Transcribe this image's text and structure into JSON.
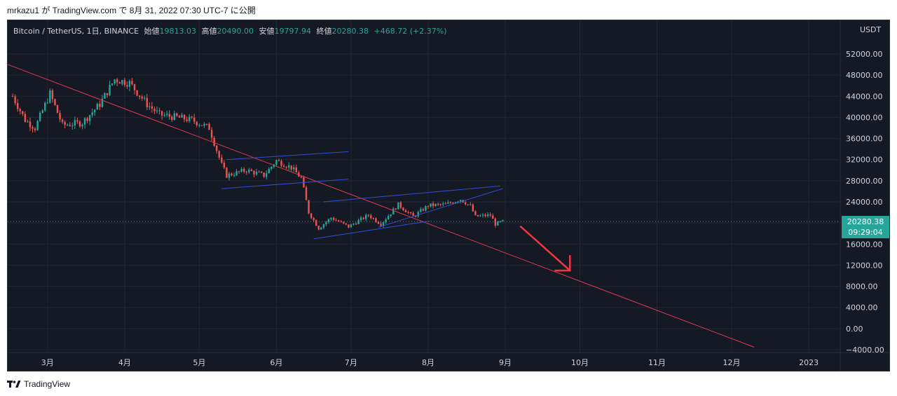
{
  "header": {
    "published_by": "mrkazu1 が TradingView.com で 8月 31, 2022 07:30 UTC-7 に公開"
  },
  "legend": {
    "symbol": "Bitcoin / TetherUS, 1日, BINANCE",
    "open_label": "始値",
    "open_value": "19813.03",
    "high_label": "高値",
    "high_value": "20490.00",
    "low_label": "安値",
    "low_value": "19797.94",
    "close_label": "終値",
    "close_value": "20280.38",
    "change": "+468.72 (+2.37%)"
  },
  "price_scale": {
    "unit": "USDT",
    "current_price": "20280.38",
    "countdown": "09:29:04"
  },
  "footer": {
    "brand": "TradingView"
  },
  "colors": {
    "background": "#151924",
    "up": "#26a69a",
    "down": "#ef5350",
    "trendline_red": "#e03a4e",
    "channel_blue": "#2f4fd6",
    "arrow": "#f23645",
    "grid": "#232733",
    "axis_text": "#d1d4dc"
  },
  "chart_data": {
    "type": "candlestick",
    "title": "Bitcoin / TetherUS, 1日, BINANCE",
    "xlabel": "",
    "ylabel": "USDT",
    "ylim": [
      -4000,
      54000
    ],
    "y_ticks": [
      "52000.00",
      "48000.00",
      "44000.00",
      "40000.00",
      "36000.00",
      "32000.00",
      "28000.00",
      "24000.00",
      "20000.00",
      "16000.00",
      "12000.00",
      "8000.00",
      "4000.00",
      "0.00",
      "−4000.00"
    ],
    "x_ticks": [
      "3月",
      "4月",
      "5月",
      "6月",
      "7月",
      "8月",
      "9月",
      "10月",
      "11月",
      "12月",
      "2023"
    ],
    "price_path": [
      {
        "date": "2022-02-15",
        "close": 44000
      },
      {
        "date": "2022-02-20",
        "close": 39500
      },
      {
        "date": "2022-02-24",
        "close": 38000
      },
      {
        "date": "2022-03-02",
        "close": 44500
      },
      {
        "date": "2022-03-07",
        "close": 38500
      },
      {
        "date": "2022-03-15",
        "close": 39000
      },
      {
        "date": "2022-03-22",
        "close": 42500
      },
      {
        "date": "2022-03-28",
        "close": 47200
      },
      {
        "date": "2022-04-03",
        "close": 46500
      },
      {
        "date": "2022-04-10",
        "close": 42500
      },
      {
        "date": "2022-04-15",
        "close": 40500
      },
      {
        "date": "2022-04-22",
        "close": 40000
      },
      {
        "date": "2022-04-28",
        "close": 39500
      },
      {
        "date": "2022-05-05",
        "close": 38000
      },
      {
        "date": "2022-05-10",
        "close": 31000
      },
      {
        "date": "2022-05-12",
        "close": 29000
      },
      {
        "date": "2022-05-20",
        "close": 30000
      },
      {
        "date": "2022-05-27",
        "close": 29000
      },
      {
        "date": "2022-06-01",
        "close": 31800
      },
      {
        "date": "2022-06-07",
        "close": 30500
      },
      {
        "date": "2022-06-11",
        "close": 28500
      },
      {
        "date": "2022-06-14",
        "close": 22000
      },
      {
        "date": "2022-06-18",
        "close": 19000
      },
      {
        "date": "2022-06-23",
        "close": 21000
      },
      {
        "date": "2022-06-30",
        "close": 19300
      },
      {
        "date": "2022-07-08",
        "close": 21500
      },
      {
        "date": "2022-07-13",
        "close": 19800
      },
      {
        "date": "2022-07-20",
        "close": 23500
      },
      {
        "date": "2022-07-26",
        "close": 21200
      },
      {
        "date": "2022-08-01",
        "close": 23300
      },
      {
        "date": "2022-08-08",
        "close": 23500
      },
      {
        "date": "2022-08-14",
        "close": 24500
      },
      {
        "date": "2022-08-18",
        "close": 23200
      },
      {
        "date": "2022-08-20",
        "close": 21200
      },
      {
        "date": "2022-08-26",
        "close": 21500
      },
      {
        "date": "2022-08-28",
        "close": 19800
      },
      {
        "date": "2022-08-31",
        "close": 20280
      }
    ],
    "drawings": {
      "red_trendline": [
        {
          "date": "2022-01-16",
          "price": 55000
        },
        {
          "date": "2022-12-10",
          "price": -3500
        }
      ],
      "upper_flag": [
        [
          {
            "date": "2022-05-12",
            "price": 32000
          },
          {
            "date": "2022-06-30",
            "price": 33500
          }
        ],
        [
          {
            "date": "2022-05-10",
            "price": 26500
          },
          {
            "date": "2022-06-30",
            "price": 28300
          }
        ]
      ],
      "rising_wedge": [
        [
          {
            "date": "2022-06-20",
            "price": 24000
          },
          {
            "date": "2022-08-30",
            "price": 27000
          }
        ],
        [
          {
            "date": "2022-06-16",
            "price": 17000
          },
          {
            "date": "2022-08-02",
            "price": 20400
          }
        ],
        [
          {
            "date": "2022-07-12",
            "price": 19200
          },
          {
            "date": "2022-08-31",
            "price": 26500
          }
        ]
      ],
      "arrow": [
        {
          "date": "2022-09-07",
          "price": 19400
        },
        {
          "date": "2022-09-27",
          "price": 11000
        }
      ]
    }
  }
}
